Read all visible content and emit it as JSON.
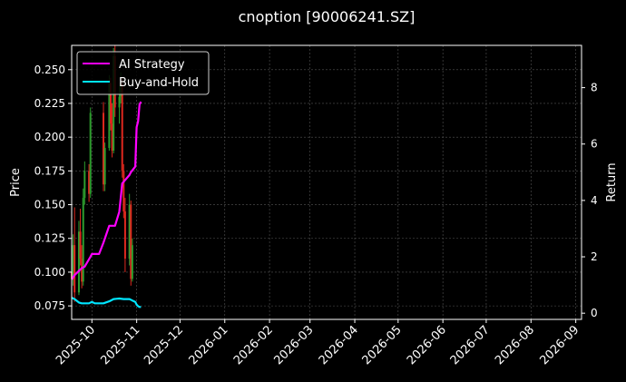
{
  "chart_data": {
    "type": "line",
    "title": "cnoption [90006241.SZ]",
    "ylabel": "Price",
    "y2label": "Return",
    "grid": true,
    "legend_position": "top-left",
    "x_range": [
      "2025-09-17",
      "2026-09-05"
    ],
    "ylim": [
      0.065,
      0.268
    ],
    "y2lim": [
      -0.22,
      9.5
    ],
    "x_ticks": [
      "2025-10-01",
      "2025-11-01",
      "2025-12-01",
      "2026-01-01",
      "2026-02-01",
      "2026-03-01",
      "2026-04-01",
      "2026-05-01",
      "2026-06-01",
      "2026-07-01",
      "2026-08-01",
      "2026-09-01"
    ],
    "x_tick_labels": [
      "2025-10",
      "2025-11",
      "2025-12",
      "2026-01",
      "2026-02",
      "2026-03",
      "2026-04",
      "2026-05",
      "2026-06",
      "2026-07",
      "2026-08",
      "2026-09"
    ],
    "y_ticks": [
      0.075,
      0.1,
      0.125,
      0.15,
      0.175,
      0.2,
      0.225,
      0.25
    ],
    "y_tick_labels": [
      "0.075",
      "0.100",
      "0.125",
      "0.150",
      "0.175",
      "0.200",
      "0.225",
      "0.250"
    ],
    "y2_ticks": [
      0,
      2,
      4,
      6,
      8
    ],
    "y2_tick_labels": [
      "0",
      "2",
      "4",
      "6",
      "8"
    ],
    "candles": [
      {
        "date": "2025-09-17",
        "open": 0.1,
        "high": 0.11,
        "low": 0.085,
        "close": 0.095
      },
      {
        "date": "2025-09-18",
        "open": 0.095,
        "high": 0.128,
        "low": 0.09,
        "close": 0.12
      },
      {
        "date": "2025-09-19",
        "open": 0.12,
        "high": 0.148,
        "low": 0.078,
        "close": 0.085
      },
      {
        "date": "2025-09-22",
        "open": 0.085,
        "high": 0.138,
        "low": 0.083,
        "close": 0.13
      },
      {
        "date": "2025-09-23",
        "open": 0.13,
        "high": 0.147,
        "low": 0.105,
        "close": 0.11
      },
      {
        "date": "2025-09-24",
        "open": 0.11,
        "high": 0.12,
        "low": 0.088,
        "close": 0.093
      },
      {
        "date": "2025-09-25",
        "open": 0.093,
        "high": 0.162,
        "low": 0.09,
        "close": 0.155
      },
      {
        "date": "2025-09-26",
        "open": 0.155,
        "high": 0.182,
        "low": 0.15,
        "close": 0.175
      },
      {
        "date": "2025-09-29",
        "open": 0.175,
        "high": 0.18,
        "low": 0.152,
        "close": 0.158
      },
      {
        "date": "2025-09-30",
        "open": 0.158,
        "high": 0.222,
        "low": 0.155,
        "close": 0.218
      },
      {
        "date": "2025-10-09",
        "open": 0.218,
        "high": 0.226,
        "low": 0.16,
        "close": 0.165
      },
      {
        "date": "2025-10-10",
        "open": 0.165,
        "high": 0.196,
        "low": 0.16,
        "close": 0.192
      },
      {
        "date": "2025-10-13",
        "open": 0.192,
        "high": 0.246,
        "low": 0.19,
        "close": 0.24
      },
      {
        "date": "2025-10-14",
        "open": 0.24,
        "high": 0.244,
        "low": 0.205,
        "close": 0.21
      },
      {
        "date": "2025-10-15",
        "open": 0.21,
        "high": 0.225,
        "low": 0.185,
        "close": 0.19
      },
      {
        "date": "2025-10-16",
        "open": 0.19,
        "high": 0.266,
        "low": 0.188,
        "close": 0.26
      },
      {
        "date": "2025-10-17",
        "open": 0.26,
        "high": 0.268,
        "low": 0.215,
        "close": 0.222
      },
      {
        "date": "2025-10-20",
        "open": 0.222,
        "high": 0.238,
        "low": 0.21,
        "close": 0.23
      },
      {
        "date": "2025-10-21",
        "open": 0.23,
        "high": 0.248,
        "low": 0.225,
        "close": 0.24
      },
      {
        "date": "2025-10-22",
        "open": 0.24,
        "high": 0.244,
        "low": 0.17,
        "close": 0.175
      },
      {
        "date": "2025-10-23",
        "open": 0.175,
        "high": 0.18,
        "low": 0.14,
        "close": 0.145
      },
      {
        "date": "2025-10-24",
        "open": 0.145,
        "high": 0.155,
        "low": 0.1,
        "close": 0.11
      },
      {
        "date": "2025-10-27",
        "open": 0.11,
        "high": 0.158,
        "low": 0.105,
        "close": 0.15
      },
      {
        "date": "2025-10-28",
        "open": 0.15,
        "high": 0.153,
        "low": 0.09,
        "close": 0.095
      },
      {
        "date": "2025-10-29",
        "open": 0.095,
        "high": 0.125,
        "low": 0.093,
        "close": 0.12
      }
    ],
    "series": [
      {
        "name": "AI Strategy",
        "color": "#ff00ff",
        "axis": "right",
        "x": [
          "2025-09-17",
          "2025-09-19",
          "2025-09-22",
          "2025-09-24",
          "2025-09-26",
          "2025-09-30",
          "2025-10-01",
          "2025-10-06",
          "2025-10-09",
          "2025-10-13",
          "2025-10-15",
          "2025-10-17",
          "2025-10-20",
          "2025-10-22",
          "2025-10-27",
          "2025-10-28",
          "2025-10-31",
          "2025-11-01",
          "2025-11-02",
          "2025-11-03",
          "2025-11-04"
        ],
        "values": [
          1.2,
          1.35,
          1.5,
          1.6,
          1.65,
          2.0,
          2.1,
          2.1,
          2.5,
          3.1,
          3.1,
          3.1,
          3.6,
          4.6,
          4.9,
          5.0,
          5.2,
          6.6,
          6.8,
          7.4,
          7.5
        ]
      },
      {
        "name": "Buy-and-Hold",
        "color": "#00e5ff",
        "axis": "right",
        "x": [
          "2025-09-17",
          "2025-09-19",
          "2025-09-22",
          "2025-09-24",
          "2025-09-26",
          "2025-09-29",
          "2025-10-01",
          "2025-10-03",
          "2025-10-06",
          "2025-10-09",
          "2025-10-13",
          "2025-10-16",
          "2025-10-20",
          "2025-10-23",
          "2025-10-27",
          "2025-10-29",
          "2025-10-31",
          "2025-11-01",
          "2025-11-02",
          "2025-11-03",
          "2025-11-04"
        ],
        "values": [
          0.55,
          0.5,
          0.38,
          0.35,
          0.35,
          0.35,
          0.4,
          0.35,
          0.35,
          0.35,
          0.42,
          0.5,
          0.52,
          0.5,
          0.5,
          0.45,
          0.4,
          0.3,
          0.25,
          0.22,
          0.22
        ]
      }
    ]
  }
}
